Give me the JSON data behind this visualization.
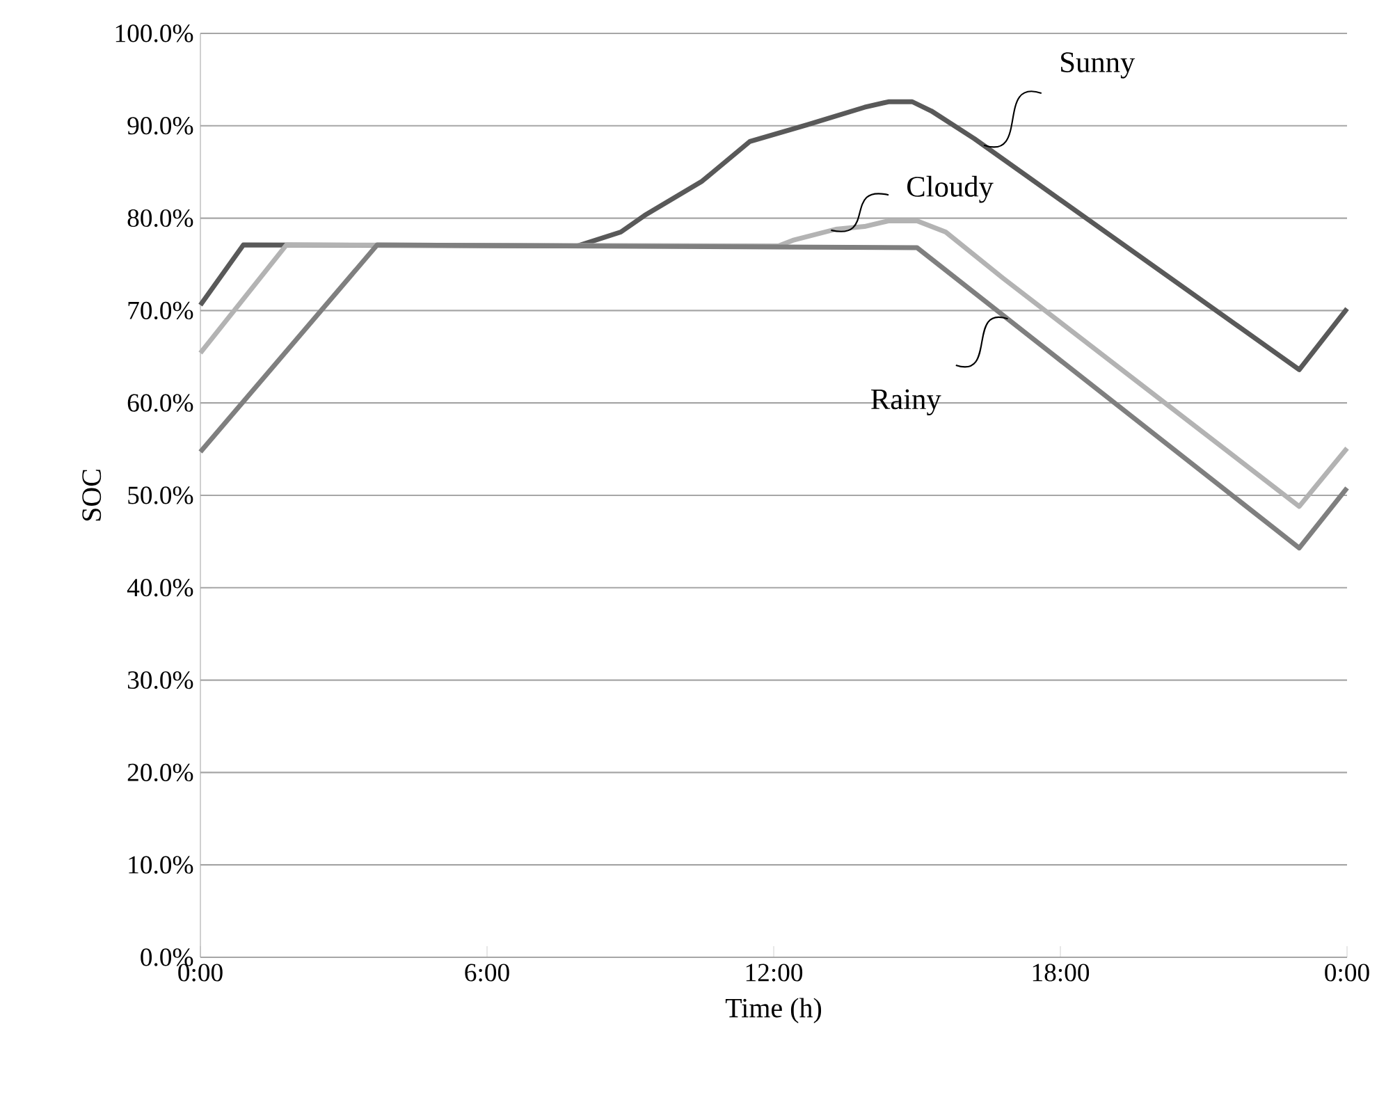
{
  "chart_data": {
    "type": "line",
    "xlabel": "Time (h)",
    "ylabel": "SOC",
    "xlim": [
      0,
      24
    ],
    "xticks": [
      {
        "value": 0,
        "label": "0:00"
      },
      {
        "value": 6,
        "label": "6:00"
      },
      {
        "value": 12,
        "label": "12:00"
      },
      {
        "value": 18,
        "label": "18:00"
      },
      {
        "value": 24,
        "label": "0:00"
      }
    ],
    "ylim": [
      0,
      100
    ],
    "yticks": [
      {
        "value": 0,
        "label": "0.0%"
      },
      {
        "value": 10,
        "label": "10.0%"
      },
      {
        "value": 20,
        "label": "20.0%"
      },
      {
        "value": 30,
        "label": "30.0%"
      },
      {
        "value": 40,
        "label": "40.0%"
      },
      {
        "value": 50,
        "label": "50.0%"
      },
      {
        "value": 60,
        "label": "60.0%"
      },
      {
        "value": 70,
        "label": "70.0%"
      },
      {
        "value": 80,
        "label": "80.0%"
      },
      {
        "value": 90,
        "label": "90.0%"
      },
      {
        "value": 100,
        "label": "100.0%"
      }
    ],
    "grid": "y",
    "marker": "none",
    "line_style": "solid",
    "series": [
      {
        "color": "#595959",
        "x": [
          0,
          0.9,
          7.9,
          8.8,
          9.3,
          10.5,
          11.5,
          12.7,
          13.9,
          14.4,
          14.9,
          15.3,
          16.2,
          23.0,
          24
        ],
        "values": [
          70.6,
          77.1,
          77.0,
          78.5,
          80.3,
          84.0,
          88.3,
          90.1,
          92.0,
          92.6,
          92.6,
          91.6,
          88.6,
          63.6,
          70.2
        ]
      },
      {
        "color": "#b3b3b3",
        "x": [
          0,
          1.8,
          12.1,
          12.4,
          13.3,
          13.9,
          14.4,
          15.0,
          15.6,
          16.8,
          23.0,
          24
        ],
        "values": [
          65.4,
          77.1,
          77.0,
          77.6,
          78.8,
          79.1,
          79.7,
          79.7,
          78.5,
          73.5,
          48.8,
          55.1
        ]
      },
      {
        "color": "#7f7f7f",
        "x": [
          0,
          3.7,
          15.0,
          23.0,
          24
        ],
        "values": [
          54.7,
          77.1,
          76.8,
          44.3,
          50.8
        ]
      }
    ],
    "annotations": [
      {
        "text": "Sunny",
        "x": 16.4,
        "y": 87.9
      },
      {
        "text": "Cloudy",
        "x": 13.2,
        "y": 78.7
      },
      {
        "text": "Rainy",
        "x": 16.9,
        "y": 69.1
      }
    ]
  }
}
